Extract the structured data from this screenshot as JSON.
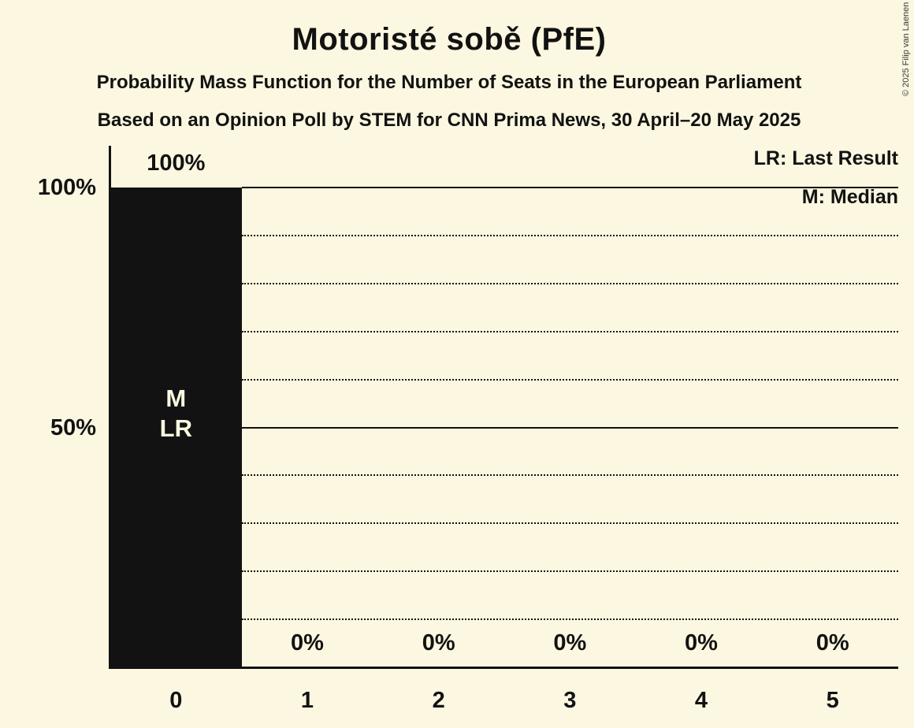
{
  "title": "Motoristé sobě (PfE)",
  "subtitle1": "Probability Mass Function for the Number of Seats in the European Parliament",
  "subtitle2": "Based on an Opinion Poll by STEM for CNN Prima News, 30 April–20 May 2025",
  "legend": {
    "lr": "LR: Last Result",
    "m": "M: Median"
  },
  "copyright": "© 2025 Filip van Laenen",
  "colors": {
    "background": "#FCF7E0",
    "bar": "#121212",
    "ink": "#121212",
    "bar_label_text": "#FCF7E0"
  },
  "chart_data": {
    "type": "bar",
    "title": "Motoristé sobě (PfE)",
    "categories": [
      "0",
      "1",
      "2",
      "3",
      "4",
      "5"
    ],
    "values": [
      100,
      0,
      0,
      0,
      0,
      0
    ],
    "bar_labels": [
      "100%",
      "0%",
      "0%",
      "0%",
      "0%",
      "0%"
    ],
    "xlabel": "",
    "ylabel": "",
    "ylim": [
      0,
      100
    ],
    "yticks": [
      {
        "pct": 100,
        "label": "100%"
      },
      {
        "pct": 50,
        "label": "50%"
      }
    ],
    "gridlines": {
      "solid_pct": [
        100,
        50
      ],
      "dotted_pct": [
        90,
        80,
        70,
        60,
        40,
        30,
        20,
        10
      ]
    },
    "annotations": [
      {
        "category": "0",
        "lines": [
          "M",
          "LR"
        ]
      }
    ],
    "legend_position": "top-right",
    "grid": true
  }
}
